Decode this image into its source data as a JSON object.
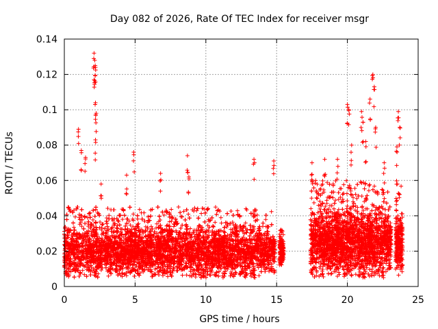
{
  "chart_data": {
    "type": "scatter",
    "title": "Day 082 of 2026, Rate Of TEC Index for receiver msgr",
    "xlabel": "GPS time / hours",
    "ylabel": "ROTI / TECUs",
    "xlim": [
      0,
      25
    ],
    "ylim": [
      0,
      0.14
    ],
    "x_ticks": [
      0,
      5,
      10,
      15,
      20,
      25
    ],
    "x_tick_labels": [
      "0",
      "5",
      "10",
      "15",
      "20",
      "25"
    ],
    "y_ticks": [
      0,
      0.02,
      0.04,
      0.06,
      0.08,
      0.1,
      0.12,
      0.14
    ],
    "y_tick_labels": [
      "0",
      "0.02",
      "0.04",
      "0.06",
      "0.08",
      "0.1",
      "0.12",
      "0.14"
    ],
    "grid": true,
    "legend": "none",
    "marker": "plus",
    "color": "#ff0000",
    "series": [
      {
        "name": "ROTI",
        "segments": [
          {
            "x_range": [
              0.0,
              14.9
            ],
            "baseline": 0.02,
            "spread": 0.012,
            "typical_max": 0.045
          },
          {
            "x_range": [
              15.2,
              15.5
            ],
            "baseline": 0.02,
            "spread": 0.008,
            "typical_max": 0.032
          },
          {
            "x_range": [
              17.4,
              23.1
            ],
            "baseline": 0.025,
            "spread": 0.016,
            "typical_max": 0.06
          },
          {
            "x_range": [
              23.4,
              23.9
            ],
            "baseline": 0.025,
            "spread": 0.014,
            "typical_max": 0.06
          }
        ],
        "peaks": [
          {
            "x": 1.0,
            "y": 0.089
          },
          {
            "x": 1.2,
            "y": 0.077
          },
          {
            "x": 1.5,
            "y": 0.073
          },
          {
            "x": 2.1,
            "y": 0.132
          },
          {
            "x": 2.15,
            "y": 0.128
          },
          {
            "x": 2.2,
            "y": 0.124
          },
          {
            "x": 2.1,
            "y": 0.117
          },
          {
            "x": 2.2,
            "y": 0.104
          },
          {
            "x": 2.25,
            "y": 0.098
          },
          {
            "x": 2.2,
            "y": 0.083
          },
          {
            "x": 2.6,
            "y": 0.058
          },
          {
            "x": 4.4,
            "y": 0.063
          },
          {
            "x": 4.9,
            "y": 0.076
          },
          {
            "x": 6.8,
            "y": 0.064
          },
          {
            "x": 8.7,
            "y": 0.074
          },
          {
            "x": 8.8,
            "y": 0.062
          },
          {
            "x": 13.4,
            "y": 0.072
          },
          {
            "x": 14.8,
            "y": 0.071
          },
          {
            "x": 17.5,
            "y": 0.07
          },
          {
            "x": 18.4,
            "y": 0.072
          },
          {
            "x": 19.3,
            "y": 0.072
          },
          {
            "x": 20.0,
            "y": 0.103
          },
          {
            "x": 20.1,
            "y": 0.1
          },
          {
            "x": 21.0,
            "y": 0.099
          },
          {
            "x": 21.1,
            "y": 0.093
          },
          {
            "x": 21.6,
            "y": 0.106
          },
          {
            "x": 21.8,
            "y": 0.12
          },
          {
            "x": 21.9,
            "y": 0.113
          },
          {
            "x": 22.0,
            "y": 0.09
          },
          {
            "x": 22.6,
            "y": 0.07
          },
          {
            "x": 23.6,
            "y": 0.099
          },
          {
            "x": 23.7,
            "y": 0.09
          },
          {
            "x": 23.5,
            "y": 0.079
          },
          {
            "x": 20.3,
            "y": 0.08
          },
          {
            "x": 21.3,
            "y": 0.082
          }
        ]
      }
    ]
  }
}
